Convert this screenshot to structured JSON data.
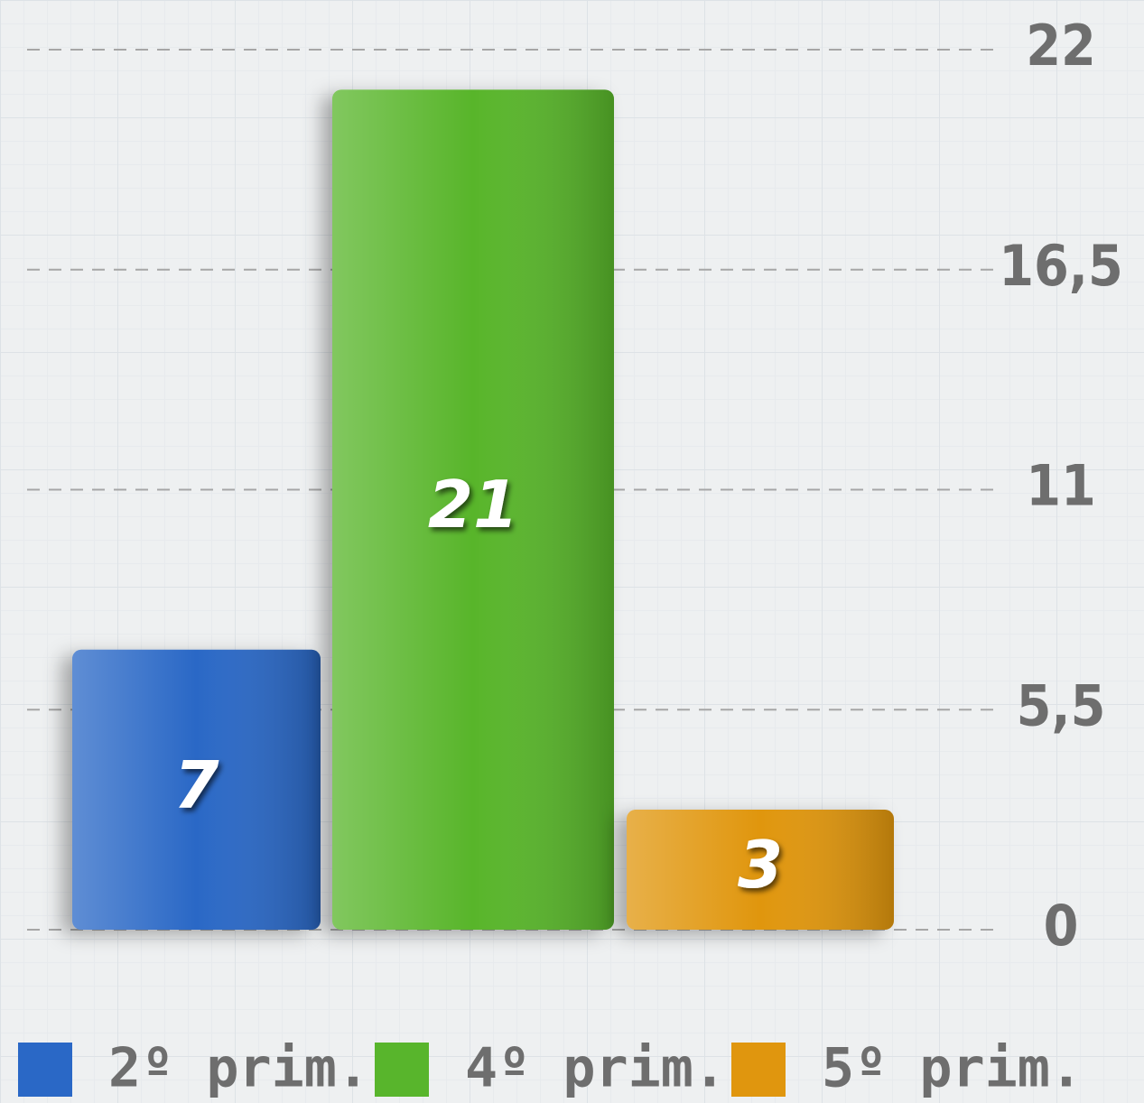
{
  "chart_data": {
    "type": "bar",
    "series": [
      {
        "name": "2º prim.",
        "color": "#2a68c6",
        "values": [
          7
        ]
      },
      {
        "name": "4º prim.",
        "color": "#58b52c",
        "values": [
          21
        ]
      },
      {
        "name": "5º prim.",
        "color": "#e0960e",
        "values": [
          3
        ]
      }
    ],
    "ylim": [
      0,
      22
    ],
    "yticks": [
      0,
      {
        "value": 5.5,
        "label": "5,5"
      },
      11,
      {
        "value": 16.5,
        "label": "16,5"
      },
      22
    ],
    "grid": true,
    "legend": "bottom"
  }
}
